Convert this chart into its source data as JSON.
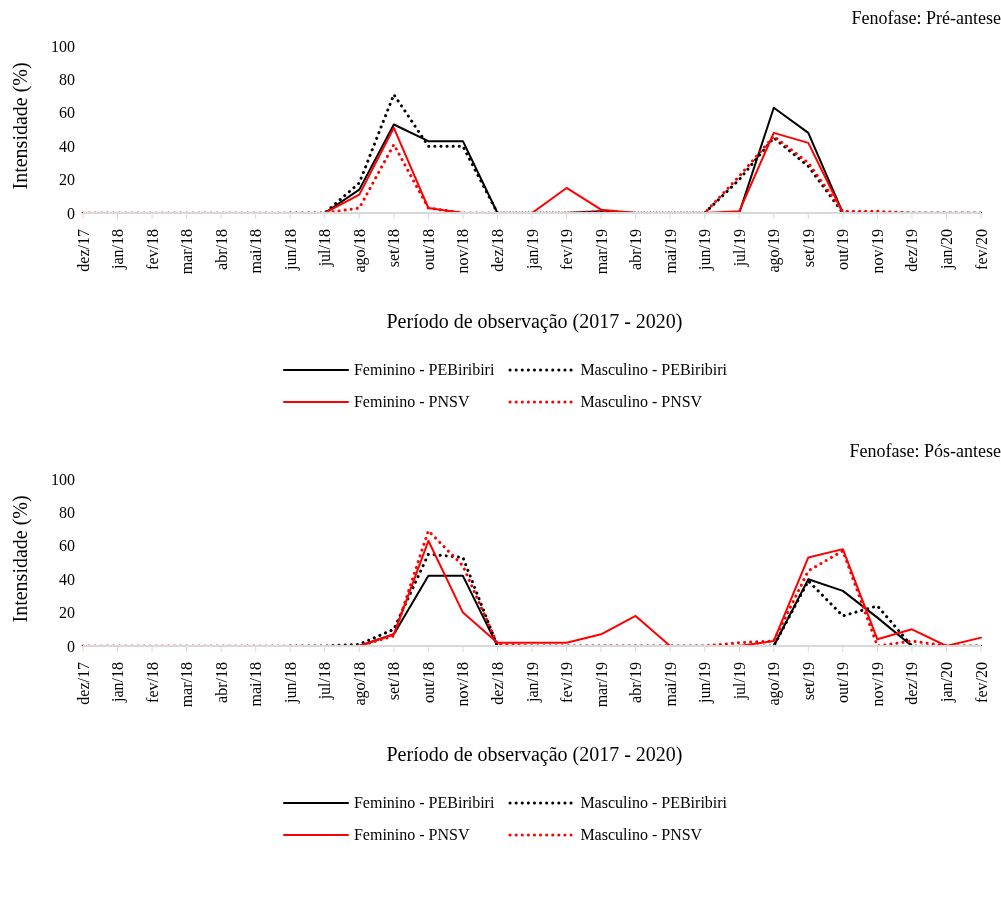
{
  "chart_data": [
    {
      "type": "line",
      "title": "Fenofase: Pré-antese",
      "xlabel": "Período de observação (2017 - 2020)",
      "ylabel": "Intensidade (%)",
      "categories": [
        "dez/17",
        "jan/18",
        "fev/18",
        "mar/18",
        "abr/18",
        "mai/18",
        "jun/18",
        "jul/18",
        "ago/18",
        "set/18",
        "out/18",
        "nov/18",
        "dez/18",
        "jan/19",
        "fev/19",
        "mar/19",
        "abr/19",
        "mai/19",
        "jun/19",
        "jul/19",
        "ago/19",
        "set/19",
        "out/19",
        "nov/19",
        "dez/19",
        "jan/20",
        "fev/20"
      ],
      "ylim": [
        0,
        100
      ],
      "yticks": [
        0,
        20,
        40,
        60,
        80,
        100
      ],
      "grid": false,
      "legend": "bottom",
      "marker": "none",
      "series": [
        {
          "name": "Feminino - PEBiribiri",
          "color": "#000000",
          "line_style": "solid",
          "values": [
            null,
            null,
            null,
            null,
            null,
            null,
            0,
            0,
            14,
            53,
            43,
            43,
            0,
            0,
            0,
            1,
            0,
            0,
            0,
            0,
            63,
            48,
            0,
            0,
            0,
            0,
            0
          ]
        },
        {
          "name": "Masculino - PEBiribiri",
          "color": "#000000",
          "line_style": "dotted",
          "values": [
            null,
            null,
            null,
            null,
            null,
            null,
            0,
            0,
            18,
            71,
            40,
            40,
            0,
            0,
            0,
            0,
            0,
            0,
            0,
            20,
            45,
            28,
            0,
            0,
            0,
            0,
            0
          ]
        },
        {
          "name": "Feminino - PNSV",
          "color": "#ff0000",
          "line_style": "solid",
          "values": [
            0,
            0,
            0,
            0,
            0,
            0,
            0,
            0,
            11,
            51,
            3,
            0,
            0,
            0,
            15,
            2,
            0,
            0,
            0,
            1,
            48,
            42,
            0,
            0,
            0,
            0,
            0
          ]
        },
        {
          "name": "Masculino - PNSV",
          "color": "#ff0000",
          "line_style": "dotted",
          "values": [
            0,
            0,
            0,
            0,
            0,
            0,
            0,
            0,
            3,
            41,
            3,
            0,
            0,
            0,
            0,
            1,
            0,
            0,
            0,
            22,
            46,
            30,
            1,
            1,
            0,
            0,
            0
          ]
        }
      ]
    },
    {
      "type": "line",
      "title": "Fenofase: Pós-antese",
      "xlabel": "Período de observação (2017 - 2020)",
      "ylabel": "Intensidade (%)",
      "categories": [
        "dez/17",
        "jan/18",
        "fev/18",
        "mar/18",
        "abr/18",
        "mai/18",
        "jun/18",
        "jul/18",
        "ago/18",
        "set/18",
        "out/18",
        "nov/18",
        "dez/18",
        "jan/19",
        "fev/19",
        "mar/19",
        "abr/19",
        "mai/19",
        "jun/19",
        "jul/19",
        "ago/19",
        "set/19",
        "out/19",
        "nov/19",
        "dez/19",
        "jan/20",
        "fev/20"
      ],
      "ylim": [
        0,
        100
      ],
      "yticks": [
        0,
        20,
        40,
        60,
        80,
        100
      ],
      "grid": false,
      "legend": "bottom",
      "marker": "none",
      "series": [
        {
          "name": "Feminino - PEBiribiri",
          "color": "#000000",
          "line_style": "solid",
          "values": [
            null,
            null,
            null,
            null,
            null,
            null,
            0,
            0,
            0,
            7,
            42,
            42,
            0,
            0,
            0,
            0,
            0,
            0,
            0,
            0,
            0,
            40,
            33,
            17,
            0,
            0,
            0
          ]
        },
        {
          "name": "Masculino - PEBiribiri",
          "color": "#000000",
          "line_style": "dotted",
          "values": [
            null,
            null,
            null,
            null,
            null,
            null,
            0,
            0,
            1,
            10,
            55,
            53,
            0,
            0,
            0,
            0,
            0,
            0,
            0,
            0,
            0,
            39,
            18,
            24,
            0,
            0,
            0
          ]
        },
        {
          "name": "Feminino - PNSV",
          "color": "#ff0000",
          "line_style": "solid",
          "values": [
            0,
            0,
            0,
            0,
            0,
            0,
            0,
            0,
            0,
            7,
            63,
            20,
            2,
            2,
            2,
            7,
            18,
            0,
            0,
            0,
            3,
            53,
            58,
            4,
            10,
            0,
            5
          ]
        },
        {
          "name": "Masculino - PNSV",
          "color": "#ff0000",
          "line_style": "dotted",
          "values": [
            0,
            0,
            0,
            0,
            0,
            0,
            0,
            0,
            0,
            6,
            69,
            48,
            1,
            0,
            0,
            0,
            0,
            0,
            0,
            2,
            3,
            45,
            57,
            0,
            3,
            0,
            0
          ]
        }
      ]
    }
  ]
}
